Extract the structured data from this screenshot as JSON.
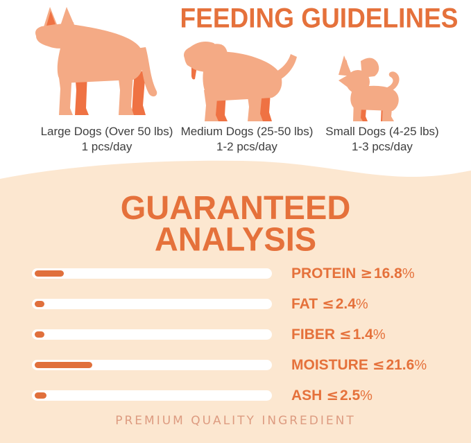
{
  "title": "FEEDING GUIDELINES",
  "feeding": {
    "items": [
      {
        "size": "large",
        "label": "Large Dogs (Over 50 lbs)",
        "amount": "1 pcs/day"
      },
      {
        "size": "medium",
        "label": "Medium Dogs (25-50 lbs)",
        "amount": "1-2 pcs/day"
      },
      {
        "size": "small",
        "label": "Small Dogs (4-25 lbs)",
        "amount": "1-3 pcs/day"
      }
    ]
  },
  "analysis": {
    "heading_line1": "GUARANTEED",
    "heading_line2": "ANALYSIS",
    "percent_sign": "%",
    "rows": [
      {
        "label": "PROTEIN",
        "operator": "≥",
        "value": "16.8",
        "bar_fill_pct": 12
      },
      {
        "label": "FAT",
        "operator": "≤",
        "value": "2.4",
        "bar_fill_pct": 4
      },
      {
        "label": "FIBER",
        "operator": "≤",
        "value": "1.4",
        "bar_fill_pct": 4
      },
      {
        "label": "MOISTURE",
        "operator": "≤",
        "value": "21.6",
        "bar_fill_pct": 24
      },
      {
        "label": "ASH",
        "operator": "≤",
        "value": "2.5",
        "bar_fill_pct": 5
      }
    ]
  },
  "footer": "PREMIUM QUALITY INGREDIENT",
  "colors": {
    "accent_orange": "#E5713B",
    "dog_body": "#F4AA85",
    "dog_accent": "#EF7243",
    "section_bg": "#FCE7D0",
    "bar_track": "#FFFFFF",
    "bar_fill": "#E0703C",
    "text_dark": "#3E3E3E",
    "footer_text": "#DD9B80"
  }
}
